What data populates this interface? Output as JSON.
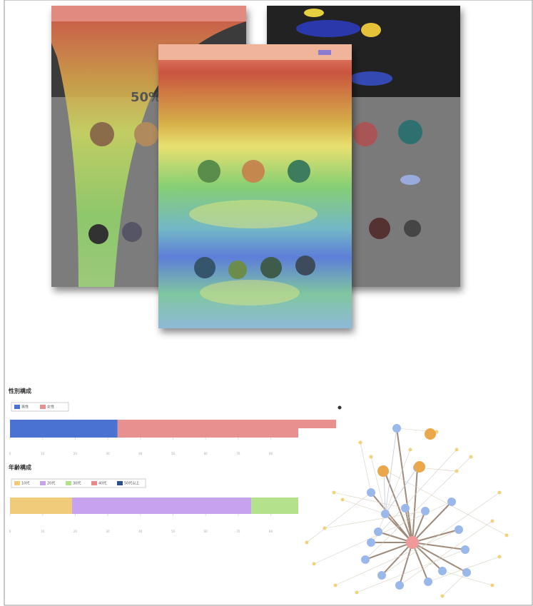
{
  "heatmap_text": "50%",
  "chart_data": [
    {
      "type": "stacked-bar",
      "title": "性別構成",
      "series": [
        {
          "name": "男性",
          "color": "#4a72d2",
          "values": [
            33
          ]
        },
        {
          "name": "女性",
          "color": "#e89090",
          "values": [
            67
          ]
        }
      ],
      "xlim": [
        0,
        100
      ],
      "xticks": [
        0,
        10,
        20,
        30,
        40,
        50,
        60,
        70,
        80,
        90,
        100
      ]
    },
    {
      "type": "stacked-bar",
      "title": "年齢構成",
      "series": [
        {
          "name": "10代",
          "color": "#f0cc7a",
          "values": [
            19
          ]
        },
        {
          "name": "20代",
          "color": "#c7a3ee",
          "values": [
            55
          ]
        },
        {
          "name": "30代",
          "color": "#b4e28c",
          "values": [
            20
          ]
        },
        {
          "name": "40代",
          "color": "#e88a8a",
          "values": [
            5
          ]
        },
        {
          "name": "50代以上",
          "color": "#2f4e8a",
          "values": [
            1
          ]
        }
      ],
      "xlim": [
        0,
        100
      ],
      "xticks": [
        0,
        10,
        20,
        30,
        40,
        50,
        60,
        70,
        80,
        90,
        100
      ]
    }
  ]
}
